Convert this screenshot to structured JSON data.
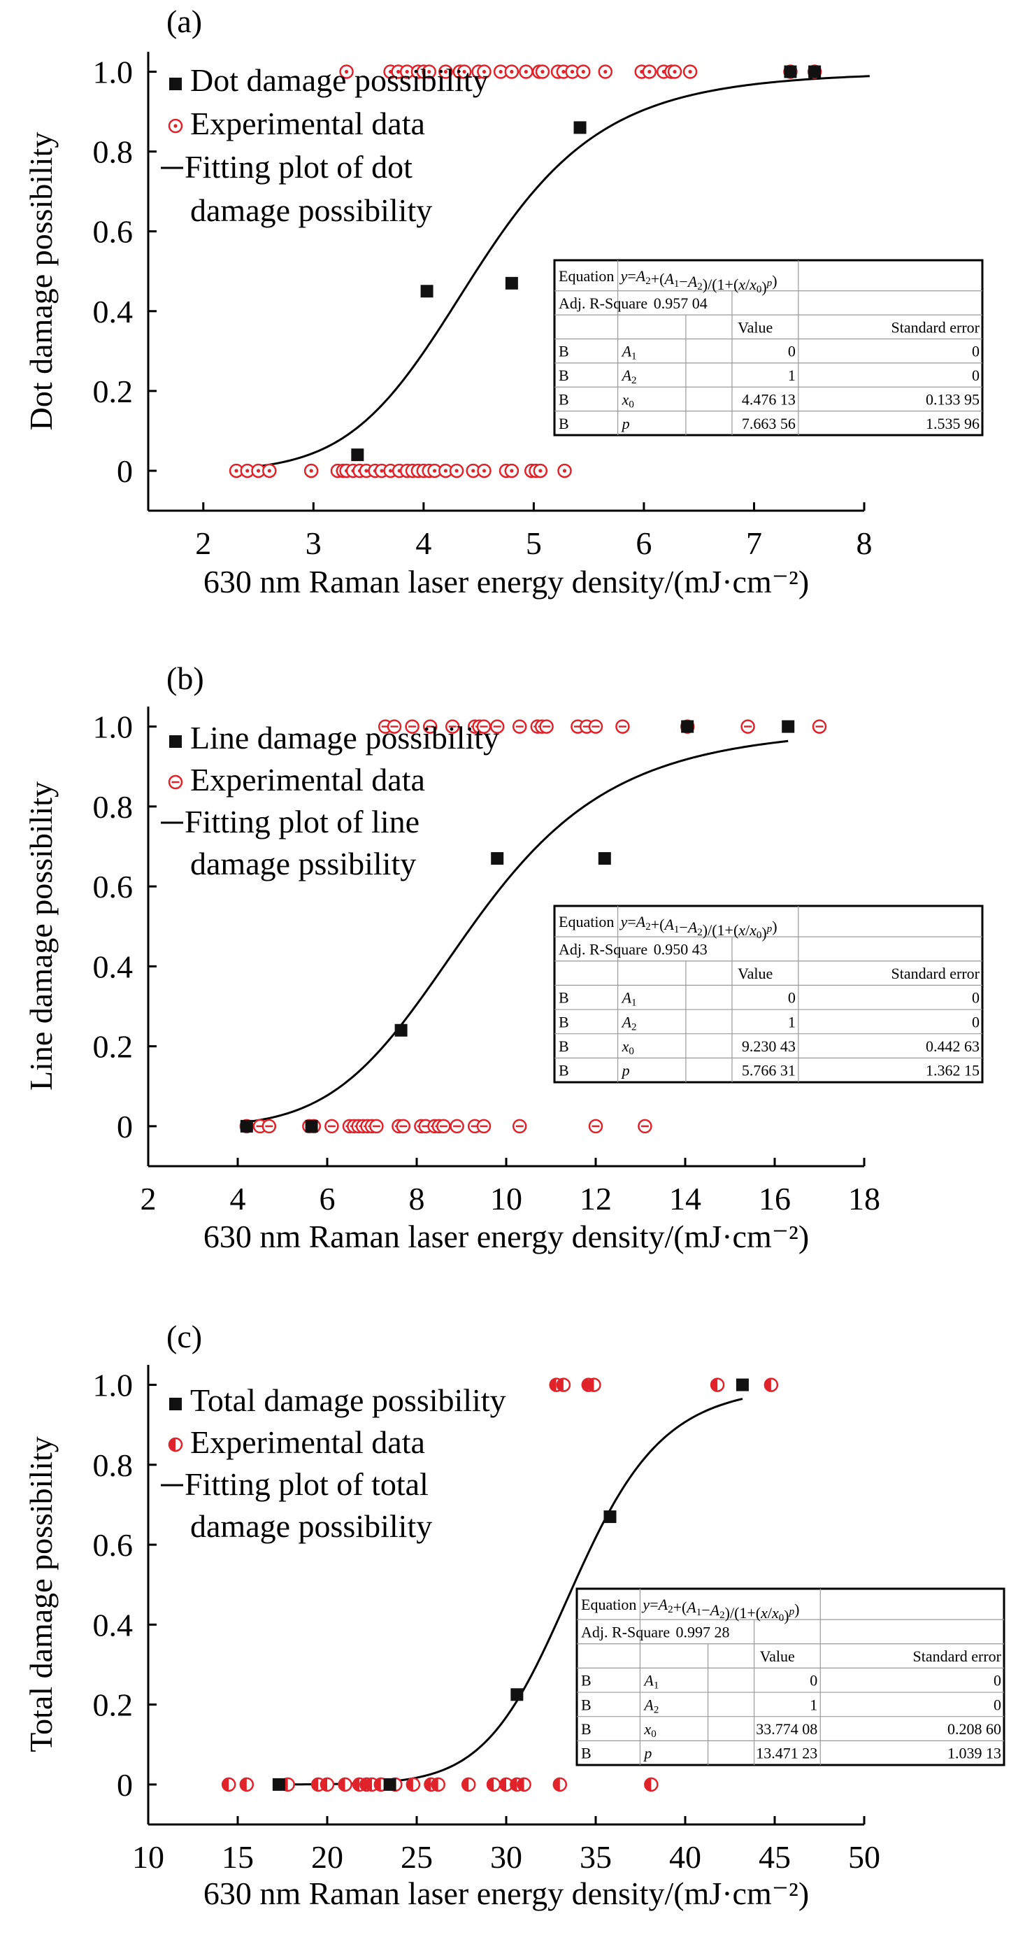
{
  "chart_data": [
    {
      "type": "scatter",
      "panel": "(a)",
      "xlabel": "630 nm Raman laser energy density/(mJ·cm⁻²)",
      "ylabel": "Dot damage possibility",
      "xlim": [
        1.5,
        8
      ],
      "ylim": [
        -0.1,
        1.05
      ],
      "xticks": [
        2,
        3,
        4,
        5,
        6,
        7,
        8
      ],
      "xtick_labels": [
        "2",
        "3",
        "4",
        "5",
        "6",
        "7",
        "8"
      ],
      "yticks": [
        0,
        0.2,
        0.4,
        0.6,
        0.8,
        1.0
      ],
      "ytick_labels": [
        "0",
        "0.2",
        "0.4",
        "0.6",
        "0.8",
        "1.0"
      ],
      "legend": {
        "placement": "top-left",
        "entries": [
          "Dot damage possibility",
          "Experimental data",
          "Fitting plot of dot",
          "damage possibility"
        ]
      },
      "marker_style": "ring-dot",
      "series": [
        {
          "name": "Dot damage possibility",
          "kind": "square",
          "points": [
            [
              3.4,
              0.04
            ],
            [
              4.03,
              0.45
            ],
            [
              4.8,
              0.47
            ],
            [
              5.42,
              0.86
            ],
            [
              7.33,
              1.0
            ],
            [
              7.55,
              1.0
            ]
          ]
        },
        {
          "name": "Experimental data",
          "kind": "marker",
          "points": [
            [
              2.3,
              0
            ],
            [
              2.4,
              0
            ],
            [
              2.5,
              0
            ],
            [
              2.6,
              0
            ],
            [
              2.98,
              0
            ],
            [
              3.22,
              0
            ],
            [
              3.27,
              0
            ],
            [
              3.3,
              0
            ],
            [
              3.36,
              0
            ],
            [
              3.42,
              0
            ],
            [
              3.48,
              0
            ],
            [
              3.56,
              0
            ],
            [
              3.62,
              0
            ],
            [
              3.7,
              0
            ],
            [
              3.78,
              0
            ],
            [
              3.85,
              0
            ],
            [
              3.9,
              0
            ],
            [
              3.95,
              0
            ],
            [
              4.0,
              0
            ],
            [
              4.05,
              0
            ],
            [
              4.1,
              0
            ],
            [
              4.2,
              0
            ],
            [
              4.3,
              0
            ],
            [
              4.45,
              0
            ],
            [
              4.55,
              0
            ],
            [
              4.75,
              0
            ],
            [
              4.8,
              0
            ],
            [
              4.98,
              0
            ],
            [
              5.02,
              0
            ],
            [
              5.06,
              0
            ],
            [
              5.28,
              0
            ],
            [
              3.3,
              1
            ],
            [
              3.7,
              1
            ],
            [
              3.77,
              1
            ],
            [
              3.85,
              1
            ],
            [
              3.95,
              1
            ],
            [
              4.0,
              1
            ],
            [
              4.05,
              1
            ],
            [
              4.2,
              1
            ],
            [
              4.33,
              1
            ],
            [
              4.37,
              1
            ],
            [
              4.5,
              1
            ],
            [
              4.55,
              1
            ],
            [
              4.7,
              1
            ],
            [
              4.8,
              1
            ],
            [
              4.93,
              1
            ],
            [
              5.05,
              1
            ],
            [
              5.08,
              1
            ],
            [
              5.22,
              1
            ],
            [
              5.27,
              1
            ],
            [
              5.35,
              1
            ],
            [
              5.45,
              1
            ],
            [
              5.65,
              1
            ],
            [
              5.98,
              1
            ],
            [
              6.05,
              1
            ],
            [
              6.18,
              1
            ],
            [
              6.25,
              1
            ],
            [
              6.28,
              1
            ],
            [
              6.42,
              1
            ],
            [
              7.33,
              1
            ],
            [
              7.55,
              1
            ]
          ]
        },
        {
          "name": "Fitting plot of dot damage possibility",
          "kind": "line",
          "model": {
            "A1": 0,
            "A2": 1,
            "x0": 4.47613,
            "p": 7.66356
          },
          "x_range": [
            2.5,
            8.05
          ]
        }
      ],
      "table": {
        "rows": [
          [
            "Equation",
            "y=A2+(A1−A2)/(1+(x/x0)p)",
            "",
            ""
          ],
          [
            "Adj. R-Square",
            "0.957 04",
            "",
            ""
          ],
          [
            "",
            "",
            "Value",
            "Standard error"
          ],
          [
            "B",
            "A1",
            "0",
            "0"
          ],
          [
            "B",
            "A2",
            "1",
            "0"
          ],
          [
            "B",
            "x0",
            "4.476 13",
            "0.133 95"
          ],
          [
            "B",
            "p",
            "7.663 56",
            "1.535 96"
          ]
        ]
      }
    },
    {
      "type": "scatter",
      "panel": "(b)",
      "xlabel": "630 nm Raman laser energy density/(mJ·cm⁻²)",
      "ylabel": "Line damage possibility",
      "xlim": [
        2,
        18
      ],
      "ylim": [
        -0.1,
        1.05
      ],
      "xticks": [
        2,
        4,
        6,
        8,
        10,
        12,
        14,
        16,
        18
      ],
      "xtick_labels": [
        "2",
        "4",
        "6",
        "8",
        "10",
        "12",
        "14",
        "16",
        "18"
      ],
      "yticks": [
        0,
        0.2,
        0.4,
        0.6,
        0.8,
        1.0
      ],
      "ytick_labels": [
        "0",
        "0.2",
        "0.4",
        "0.6",
        "0.8",
        "1.0"
      ],
      "legend": {
        "placement": "top-left",
        "entries": [
          "Line damage possibility",
          "Experimental data",
          "Fitting plot of line",
          "damage pssibility"
        ]
      },
      "marker_style": "ring-dash",
      "series": [
        {
          "name": "Line damage possibility",
          "kind": "square",
          "points": [
            [
              4.2,
              0.0
            ],
            [
              5.65,
              0.0
            ],
            [
              7.65,
              0.24
            ],
            [
              9.8,
              0.67
            ],
            [
              12.2,
              0.67
            ],
            [
              14.05,
              1.0
            ],
            [
              16.3,
              1.0
            ]
          ]
        },
        {
          "name": "Experimental data",
          "kind": "marker",
          "points": [
            [
              4.2,
              0
            ],
            [
              4.5,
              0
            ],
            [
              4.7,
              0
            ],
            [
              5.6,
              0
            ],
            [
              5.7,
              0
            ],
            [
              6.1,
              0
            ],
            [
              6.5,
              0
            ],
            [
              6.6,
              0
            ],
            [
              6.7,
              0
            ],
            [
              6.8,
              0
            ],
            [
              6.9,
              0
            ],
            [
              7.0,
              0
            ],
            [
              7.1,
              0
            ],
            [
              7.6,
              0
            ],
            [
              7.7,
              0
            ],
            [
              8.1,
              0
            ],
            [
              8.2,
              0
            ],
            [
              8.4,
              0
            ],
            [
              8.5,
              0
            ],
            [
              8.6,
              0
            ],
            [
              8.9,
              0
            ],
            [
              9.3,
              0
            ],
            [
              9.5,
              0
            ],
            [
              10.3,
              0
            ],
            [
              12.0,
              0
            ],
            [
              13.1,
              0
            ],
            [
              7.3,
              1
            ],
            [
              7.5,
              1
            ],
            [
              7.9,
              1
            ],
            [
              8.3,
              1
            ],
            [
              8.8,
              1
            ],
            [
              9.3,
              1
            ],
            [
              9.4,
              1
            ],
            [
              9.5,
              1
            ],
            [
              9.8,
              1
            ],
            [
              10.3,
              1
            ],
            [
              10.7,
              1
            ],
            [
              10.8,
              1
            ],
            [
              10.9,
              1
            ],
            [
              11.6,
              1
            ],
            [
              11.8,
              1
            ],
            [
              12.0,
              1
            ],
            [
              12.6,
              1
            ],
            [
              14.05,
              1
            ],
            [
              15.4,
              1
            ],
            [
              17.0,
              1
            ]
          ]
        },
        {
          "name": "Fitting plot of line damage possibility",
          "kind": "line",
          "model": {
            "A1": 0,
            "A2": 1,
            "x0": 9.23043,
            "p": 5.76631
          },
          "x_range": [
            4.2,
            16.3
          ]
        }
      ],
      "table": {
        "rows": [
          [
            "Equation",
            "y=A2+(A1−A2)/(1+(x/x0)p)",
            "",
            ""
          ],
          [
            "Adj. R-Square",
            "0.950 43",
            "",
            ""
          ],
          [
            "",
            "",
            "Value",
            "Standard error"
          ],
          [
            "B",
            "A1",
            "0",
            "0"
          ],
          [
            "B",
            "A2",
            "1",
            "0"
          ],
          [
            "B",
            "x0",
            "9.230 43",
            "0.442 63"
          ],
          [
            "B",
            "p",
            "5.766 31",
            "1.362 15"
          ]
        ]
      }
    },
    {
      "type": "scatter",
      "panel": "(c)",
      "xlabel": "630 nm Raman laser energy density/(mJ·cm⁻²)",
      "ylabel": "Total damage possibility",
      "xlim": [
        10,
        50
      ],
      "ylim": [
        -0.1,
        1.05
      ],
      "xticks": [
        10,
        15,
        20,
        25,
        30,
        35,
        40,
        45,
        50
      ],
      "xtick_labels": [
        "10",
        "15",
        "20",
        "25",
        "30",
        "35",
        "40",
        "45",
        "50"
      ],
      "yticks": [
        0,
        0.2,
        0.4,
        0.6,
        0.8,
        1.0
      ],
      "ytick_labels": [
        "0",
        "0.2",
        "0.4",
        "0.6",
        "0.8",
        "1.0"
      ],
      "legend": {
        "placement": "top-left",
        "entries": [
          "Total damage possibility",
          "Experimental data",
          "Fitting plot of total",
          "damage possibility"
        ]
      },
      "marker_style": "half-filled",
      "series": [
        {
          "name": "Total damage possibility",
          "kind": "square",
          "points": [
            [
              17.3,
              0.0
            ],
            [
              23.5,
              0.0
            ],
            [
              30.6,
              0.225
            ],
            [
              35.8,
              0.67
            ],
            [
              43.2,
              1.0
            ]
          ]
        },
        {
          "name": "Experimental data",
          "kind": "marker",
          "points": [
            [
              14.5,
              0
            ],
            [
              15.5,
              0
            ],
            [
              17.8,
              0
            ],
            [
              19.5,
              0
            ],
            [
              20.0,
              0
            ],
            [
              21.0,
              0
            ],
            [
              21.8,
              0
            ],
            [
              22.2,
              0
            ],
            [
              22.5,
              0
            ],
            [
              23.0,
              0
            ],
            [
              23.8,
              0
            ],
            [
              24.8,
              0
            ],
            [
              25.8,
              0
            ],
            [
              26.2,
              0
            ],
            [
              27.9,
              0
            ],
            [
              29.3,
              0
            ],
            [
              30.0,
              0
            ],
            [
              30.6,
              0
            ],
            [
              31.0,
              0
            ],
            [
              33.0,
              0
            ],
            [
              38.1,
              0
            ],
            [
              32.8,
              1
            ],
            [
              33.2,
              1
            ],
            [
              34.6,
              1
            ],
            [
              34.9,
              1
            ],
            [
              41.8,
              1
            ],
            [
              44.8,
              1
            ]
          ]
        },
        {
          "name": "Fitting plot of total damage possibility",
          "kind": "line",
          "model": {
            "A1": 0,
            "A2": 1,
            "x0": 33.77408,
            "p": 13.47123
          },
          "x_range": [
            17.3,
            43.2
          ]
        }
      ],
      "table": {
        "rows": [
          [
            "Equation",
            "y=A2+(A1−A2)/(1+(x/x0)p)",
            "",
            ""
          ],
          [
            "Adj. R-Square",
            "0.997 28",
            "",
            ""
          ],
          [
            "",
            "",
            "Value",
            "Standard error"
          ],
          [
            "B",
            "A1",
            "0",
            "0"
          ],
          [
            "B",
            "A2",
            "1",
            "0"
          ],
          [
            "B",
            "x0",
            "33.774 08",
            "0.208 60"
          ],
          [
            "B",
            "p",
            "13.471 23",
            "1.039 13"
          ]
        ]
      }
    }
  ],
  "colors": {
    "marker_red": "#e0232b",
    "square": "#111111",
    "line": "#000000",
    "table_grid": "#9a9a9a"
  }
}
